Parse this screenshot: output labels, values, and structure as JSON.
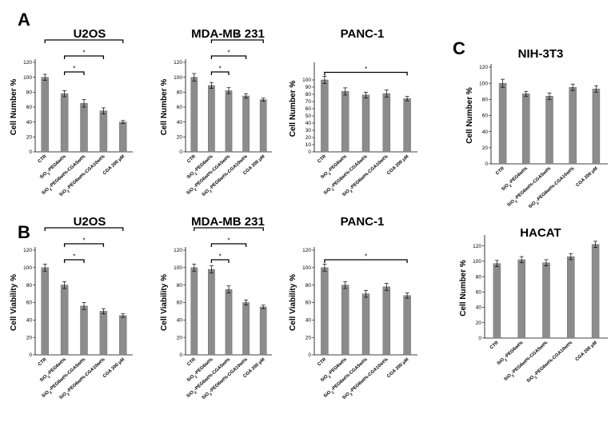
{
  "panels": [
    {
      "letter": "A"
    },
    {
      "letter": "B"
    },
    {
      "letter": "C"
    }
  ],
  "chart_data": [
    {
      "type": "bar",
      "panel": "A",
      "title": "U2OS",
      "ylabel": "Cell Number %",
      "xlabel": "",
      "categories": [
        "CTR",
        "SiO2-PEG6wt%",
        "SiO2-PEG6wt%-CGA5wt%",
        "SiO2-PEG6wt%-CGA10wt%",
        "CGA 200 μM"
      ],
      "values": [
        100,
        78,
        65,
        55,
        40
      ],
      "errors": [
        4,
        4,
        5,
        4,
        2
      ],
      "ylim": [
        0,
        120
      ],
      "yticks": [
        0,
        20,
        40,
        60,
        80,
        100,
        120
      ],
      "significance": [
        {
          "from": 1,
          "to": 2,
          "label": "*"
        },
        {
          "from": 1,
          "to": 3,
          "label": "*"
        },
        {
          "from": 0,
          "to": 4,
          "label": "*"
        }
      ]
    },
    {
      "type": "bar",
      "panel": "A",
      "title": "MDA-MB 231",
      "ylabel": "Cell Number %",
      "xlabel": "",
      "categories": [
        "CTR",
        "SiO2-PEG6wt%",
        "SiO2-PEG6wt%-CGA5wt%",
        "SiO2-PEG6wt%-CGA10wt%",
        "CGA 200 μM"
      ],
      "values": [
        100,
        89,
        82,
        75,
        70
      ],
      "errors": [
        5,
        4,
        4,
        3,
        2
      ],
      "ylim": [
        0,
        120
      ],
      "yticks": [
        0,
        20,
        40,
        60,
        80,
        100,
        120
      ],
      "significance": [
        {
          "from": 1,
          "to": 2,
          "label": "*"
        },
        {
          "from": 1,
          "to": 3,
          "label": "*"
        },
        {
          "from": 1,
          "to": 4,
          "label": "*"
        }
      ]
    },
    {
      "type": "bar",
      "panel": "A",
      "title": "PANC-1",
      "ylabel": "Cell Number %",
      "xlabel": "",
      "categories": [
        "CTR",
        "SiO2-PEG6wt%",
        "SiO2-PEG6wt%-CGA5wt%",
        "SiO2-PEG6wt%-CGA10wt%",
        "CGA 200 μM"
      ],
      "values": [
        100,
        84,
        79,
        81,
        74
      ],
      "errors": [
        5,
        5,
        4,
        5,
        3
      ],
      "ylim": [
        0,
        120
      ],
      "yticks": [
        0,
        10,
        20,
        30,
        40,
        50,
        60,
        70,
        80,
        90,
        100
      ],
      "significance": [
        {
          "from": 0,
          "to": 4,
          "label": "*"
        }
      ]
    },
    {
      "type": "bar",
      "panel": "C",
      "title": "NIH-3T3",
      "ylabel": "Cell Number %",
      "xlabel": "",
      "categories": [
        "CTR",
        "SiO2-PEG6wt%",
        "SiO2-PEG6wt%-CGA5wt%",
        "SiO2-PEG6wt%-CGA10wt%",
        "CGA 200 μM"
      ],
      "values": [
        100,
        87,
        84,
        95,
        93
      ],
      "errors": [
        5,
        3,
        4,
        4,
        4
      ],
      "ylim": [
        0,
        120
      ],
      "yticks": [
        0,
        20,
        40,
        60,
        80,
        100,
        120
      ],
      "significance": []
    },
    {
      "type": "bar",
      "panel": "B",
      "title": "U2OS",
      "ylabel": "Cell Viability %",
      "xlabel": "",
      "categories": [
        "CTR",
        "SiO2-PEG6wt%",
        "SiO2-PEG6wt%-CGA5wt%",
        "SiO2-PEG6wt%-CGA10wt%",
        "CGA 200 μM"
      ],
      "values": [
        100,
        80,
        56,
        50,
        45
      ],
      "errors": [
        4,
        4,
        4,
        3,
        2
      ],
      "ylim": [
        0,
        120
      ],
      "yticks": [
        0,
        20,
        40,
        60,
        80,
        100,
        120
      ],
      "significance": [
        {
          "from": 1,
          "to": 2,
          "label": "*"
        },
        {
          "from": 1,
          "to": 3,
          "label": "*"
        },
        {
          "from": 0,
          "to": 4,
          "label": "*"
        }
      ]
    },
    {
      "type": "bar",
      "panel": "B",
      "title": "MDA-MB 231",
      "ylabel": "Cell Viability %",
      "xlabel": "",
      "categories": [
        "CTR",
        "SiO2-PEG6wt%",
        "SiO2-PEG6wt%-CGA5wt%",
        "SiO2-PEG6wt%-CGA10wt%",
        "CGA 200 μM"
      ],
      "values": [
        100,
        98,
        75,
        60,
        55
      ],
      "errors": [
        4,
        4,
        4,
        3,
        2
      ],
      "ylim": [
        0,
        120
      ],
      "yticks": [
        0,
        20,
        40,
        60,
        80,
        100,
        120
      ],
      "significance": [
        {
          "from": 1,
          "to": 2,
          "label": "*"
        },
        {
          "from": 1,
          "to": 3,
          "label": "*"
        },
        {
          "from": 0,
          "to": 4,
          "label": "*"
        }
      ]
    },
    {
      "type": "bar",
      "panel": "B",
      "title": "PANC-1",
      "ylabel": "Cell Viability %",
      "xlabel": "",
      "categories": [
        "CTR",
        "SiO2-PEG6wt%",
        "SiO2-PEG6wt%-CGA5wt%",
        "SiO2-PEG6wt%-CGA10wt%",
        "CGA 200 μM"
      ],
      "values": [
        100,
        80,
        70,
        78,
        68
      ],
      "errors": [
        4,
        4,
        4,
        4,
        3
      ],
      "ylim": [
        0,
        120
      ],
      "yticks": [
        0,
        20,
        40,
        60,
        80,
        100,
        120
      ],
      "significance": [
        {
          "from": 0,
          "to": 4,
          "label": "*"
        }
      ]
    },
    {
      "type": "bar",
      "panel": "C",
      "title": "HACAT",
      "ylabel": "Cell Number %",
      "xlabel": "",
      "categories": [
        "CTR",
        "SiO2-PEG6wt%",
        "SiO2-PEG6wt%-CGA5wt%",
        "SiO2-PEG6wt%-CGA10wt%",
        "CGA 200 μM"
      ],
      "values": [
        97,
        102,
        98,
        106,
        122
      ],
      "errors": [
        4,
        4,
        4,
        4,
        4
      ],
      "ylim": [
        0,
        130
      ],
      "yticks": [
        0,
        20,
        40,
        60,
        80,
        100,
        120
      ],
      "significance": []
    }
  ],
  "colors": {
    "bar": "#8c8c8c",
    "bar_edge": "#6e6e6e",
    "axis": "#000000"
  }
}
